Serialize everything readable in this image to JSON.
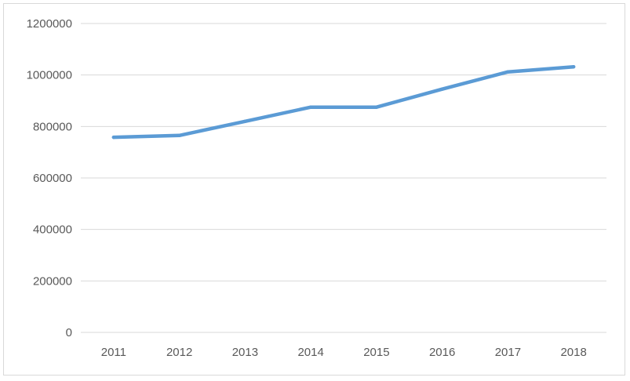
{
  "chart_data": {
    "type": "line",
    "title": "",
    "xlabel": "",
    "ylabel": "",
    "categories": [
      "2011",
      "2012",
      "2013",
      "2014",
      "2015",
      "2016",
      "2017",
      "2018"
    ],
    "series": [
      {
        "values": [
          758000,
          765000,
          820000,
          875000,
          875000,
          945000,
          1012000,
          1032000
        ],
        "color": "#5b9bd5"
      }
    ],
    "ylim": [
      0,
      1200000
    ],
    "yticks": [
      "0",
      "200000",
      "400000",
      "600000",
      "800000",
      "1000000",
      "1200000"
    ],
    "grid": true,
    "gridline_color": "#d9d9d9",
    "legend": "none"
  }
}
